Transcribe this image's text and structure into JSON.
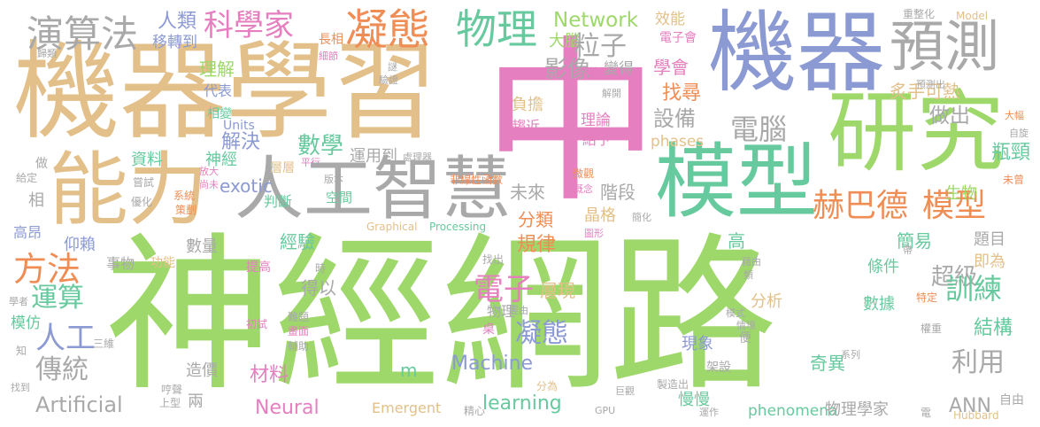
{
  "palette": {
    "green": "#9ed86a",
    "tan": "#e3c08a",
    "pink": "#e57fbf",
    "blue": "#8c9ad3",
    "gray": "#a9a9a9",
    "teal": "#67c99e",
    "orange": "#ef8d55"
  },
  "words": [
    {
      "text": "神經網路",
      "color": "green"
    },
    {
      "text": "中",
      "color": "pink"
    },
    {
      "text": "機器學習",
      "color": "tan"
    },
    {
      "text": "機器",
      "color": "blue"
    },
    {
      "text": "能力",
      "color": "tan"
    },
    {
      "text": "人工智慧",
      "color": "gray"
    },
    {
      "text": "研究",
      "color": "green"
    },
    {
      "text": "模型",
      "color": "teal"
    },
    {
      "text": "預測",
      "color": "gray"
    },
    {
      "text": "演算法",
      "color": "gray"
    },
    {
      "text": "凝態",
      "color": "orange"
    },
    {
      "text": "物理",
      "color": "teal"
    },
    {
      "text": "科學家",
      "color": "pink"
    },
    {
      "text": "人類",
      "color": "blue"
    },
    {
      "text": "移轉到",
      "color": "blue"
    },
    {
      "text": "Network",
      "color": "green"
    },
    {
      "text": "大腦",
      "color": "green"
    },
    {
      "text": "粒子",
      "color": "gray"
    },
    {
      "text": "效能",
      "color": "tan"
    },
    {
      "text": "電子會",
      "color": "pink"
    },
    {
      "text": "學會",
      "color": "pink"
    },
    {
      "text": "影像",
      "color": "gray"
    },
    {
      "text": "理解",
      "color": "green"
    },
    {
      "text": "代表",
      "color": "blue"
    },
    {
      "text": "變得",
      "color": "gray"
    },
    {
      "text": "找尋",
      "color": "orange"
    },
    {
      "text": "炙手可熱",
      "color": "tan"
    },
    {
      "text": "做出",
      "color": "gray"
    },
    {
      "text": "設備",
      "color": "gray"
    },
    {
      "text": "負擔",
      "color": "tan"
    },
    {
      "text": "趨近",
      "color": "pink"
    },
    {
      "text": "理論",
      "color": "pink"
    },
    {
      "text": "給予",
      "color": "pink"
    },
    {
      "text": "電腦",
      "color": "gray"
    },
    {
      "text": "解決",
      "color": "blue"
    },
    {
      "text": "數學",
      "color": "teal"
    },
    {
      "text": "phases",
      "color": "tan"
    },
    {
      "text": "瓶頸",
      "color": "teal"
    },
    {
      "text": "赫巴德",
      "color": "orange"
    },
    {
      "text": "模型",
      "color": "orange"
    },
    {
      "text": "方法",
      "color": "orange"
    },
    {
      "text": "運算",
      "color": "teal"
    },
    {
      "text": "人工",
      "color": "blue"
    },
    {
      "text": "傳統",
      "color": "gray"
    },
    {
      "text": "Artificial",
      "color": "gray"
    },
    {
      "text": "神經",
      "color": "teal"
    },
    {
      "text": "資料",
      "color": "teal"
    },
    {
      "text": "exotic",
      "color": "blue"
    },
    {
      "text": "運用到",
      "color": "gray"
    },
    {
      "text": "判斷",
      "color": "teal"
    },
    {
      "text": "空間",
      "color": "teal"
    },
    {
      "text": "未來",
      "color": "gray"
    },
    {
      "text": "階段",
      "color": "gray"
    },
    {
      "text": "分類",
      "color": "orange"
    },
    {
      "text": "晶格",
      "color": "tan"
    },
    {
      "text": "規律",
      "color": "orange"
    },
    {
      "text": "經驗",
      "color": "teal"
    },
    {
      "text": "數量",
      "color": "gray"
    },
    {
      "text": "超級",
      "color": "gray"
    },
    {
      "text": "訓練",
      "color": "teal"
    },
    {
      "text": "電子",
      "color": "pink"
    },
    {
      "text": "層現",
      "color": "tan"
    },
    {
      "text": "凝態",
      "color": "blue"
    },
    {
      "text": "物理",
      "color": "gray"
    },
    {
      "text": "Machine",
      "color": "blue"
    },
    {
      "text": "m",
      "color": "teal"
    },
    {
      "text": "learning",
      "color": "teal"
    },
    {
      "text": "材料",
      "color": "pink"
    },
    {
      "text": "Neural",
      "color": "pink"
    },
    {
      "text": "Emergent",
      "color": "tan"
    },
    {
      "text": "phenomena",
      "color": "teal"
    },
    {
      "text": "物理學家",
      "color": "gray"
    },
    {
      "text": "ANN",
      "color": "gray"
    },
    {
      "text": "利用",
      "color": "gray"
    },
    {
      "text": "結構",
      "color": "teal"
    },
    {
      "text": "奇異",
      "color": "teal"
    },
    {
      "text": "數據",
      "color": "teal"
    },
    {
      "text": "分析",
      "color": "tan"
    },
    {
      "text": "條件",
      "color": "teal"
    },
    {
      "text": "簡易",
      "color": "teal"
    },
    {
      "text": "題目",
      "color": "gray"
    },
    {
      "text": "即為",
      "color": "tan"
    },
    {
      "text": "生物",
      "color": "green"
    },
    {
      "text": "現象",
      "color": "blue"
    },
    {
      "text": "慢慢",
      "color": "teal"
    },
    {
      "text": "架設",
      "color": "gray"
    },
    {
      "text": "造價",
      "color": "gray"
    },
    {
      "text": "兩",
      "color": "gray"
    },
    {
      "text": "模仿",
      "color": "teal"
    },
    {
      "text": "仰賴",
      "color": "blue"
    },
    {
      "text": "高昂",
      "color": "blue"
    },
    {
      "text": "事物",
      "color": "gray"
    },
    {
      "text": "功能",
      "color": "tan"
    },
    {
      "text": "得以",
      "color": "gray"
    },
    {
      "text": "高",
      "color": "teal"
    },
    {
      "text": "相變",
      "color": "teal"
    },
    {
      "text": "Units",
      "color": "blue"
    },
    {
      "text": "做",
      "color": "gray"
    },
    {
      "text": "相",
      "color": "gray"
    },
    {
      "text": "Graphical",
      "color": "tan"
    },
    {
      "text": "Processing",
      "color": "teal"
    },
    {
      "text": "Model",
      "color": "tan"
    },
    {
      "text": "GPU",
      "color": "gray"
    },
    {
      "text": "Hubbard",
      "color": "tan"
    },
    {
      "text": "自由",
      "color": "gray"
    },
    {
      "text": "長相",
      "color": "orange"
    },
    {
      "text": "細節",
      "color": "pink"
    },
    {
      "text": "歸類",
      "color": "gray"
    },
    {
      "text": "重整化",
      "color": "gray"
    },
    {
      "text": "謎",
      "color": "gray"
    },
    {
      "text": "驗證",
      "color": "gray"
    },
    {
      "text": "計算",
      "color": "pink"
    },
    {
      "text": "解開",
      "color": "gray"
    },
    {
      "text": "預測出",
      "color": "gray"
    },
    {
      "text": "大幅",
      "color": "orange"
    },
    {
      "text": "自旋",
      "color": "gray"
    },
    {
      "text": "未曾",
      "color": "orange"
    },
    {
      "text": "層層",
      "color": "tan"
    },
    {
      "text": "處理器",
      "color": "gray"
    },
    {
      "text": "平行",
      "color": "pink"
    },
    {
      "text": "版本",
      "color": "gray"
    },
    {
      "text": "放大",
      "color": "pink"
    },
    {
      "text": "尚未",
      "color": "pink"
    },
    {
      "text": "嘗試",
      "color": "gray"
    },
    {
      "text": "系統",
      "color": "orange"
    },
    {
      "text": "策劃",
      "color": "orange"
    },
    {
      "text": "優化",
      "color": "gray"
    },
    {
      "text": "給定",
      "color": "gray"
    },
    {
      "text": "非線性函數",
      "color": "orange"
    },
    {
      "text": "微觀",
      "color": "orange"
    },
    {
      "text": "概念",
      "color": "pink"
    },
    {
      "text": "簡化",
      "color": "gray"
    },
    {
      "text": "圖形",
      "color": "pink"
    },
    {
      "text": "帶",
      "color": "gray"
    },
    {
      "text": "藉由",
      "color": "gray"
    },
    {
      "text": "類",
      "color": "gray"
    },
    {
      "text": "特定",
      "color": "orange"
    },
    {
      "text": "模式",
      "color": "gray"
    },
    {
      "text": "情境",
      "color": "gray"
    },
    {
      "text": "權重",
      "color": "gray"
    },
    {
      "text": "桌",
      "color": "pink"
    },
    {
      "text": "經由",
      "color": "gray"
    },
    {
      "text": "找出",
      "color": "gray"
    },
    {
      "text": "提高",
      "color": "pink"
    },
    {
      "text": "時",
      "color": "gray"
    },
    {
      "text": "初試",
      "color": "pink"
    },
    {
      "text": "難題",
      "color": "gray"
    },
    {
      "text": "畫面",
      "color": "pink"
    },
    {
      "text": "輔助",
      "color": "gray"
    },
    {
      "text": "三維",
      "color": "gray"
    },
    {
      "text": "學者",
      "color": "gray"
    },
    {
      "text": "知",
      "color": "gray"
    },
    {
      "text": "找到",
      "color": "gray"
    },
    {
      "text": "哼聲",
      "color": "gray"
    },
    {
      "text": "上型",
      "color": "gray"
    },
    {
      "text": "精心",
      "color": "gray"
    },
    {
      "text": "分為",
      "color": "tan"
    },
    {
      "text": "製造出",
      "color": "gray"
    },
    {
      "text": "巨觀",
      "color": "gray"
    },
    {
      "text": "運作",
      "color": "gray"
    },
    {
      "text": "系列",
      "color": "gray"
    },
    {
      "text": "便",
      "color": "gray"
    },
    {
      "text": "電",
      "color": "gray"
    }
  ]
}
